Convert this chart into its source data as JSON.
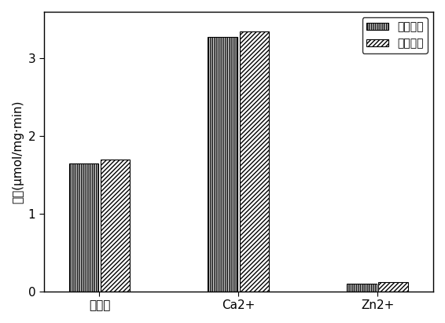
{
  "categories": [
    "控制组",
    "Ca2+",
    "Zn2+"
  ],
  "series": [
    {
      "name": "荧光强度",
      "values": [
        1.65,
        3.28,
        0.1
      ],
      "hatch": "|||||||",
      "facecolor": "#ffffff",
      "edgecolor": "#000000"
    },
    {
      "name": "荧光对命",
      "values": [
        1.7,
        3.35,
        0.12
      ],
      "hatch": "//////",
      "facecolor": "#ffffff",
      "edgecolor": "#000000"
    }
  ],
  "ylabel": "活性(μmol/mg·min)",
  "ylim": [
    0,
    3.6
  ],
  "yticks": [
    0,
    1,
    2,
    3
  ],
  "bar_width": 0.32,
  "group_positions": [
    0.5,
    2.0,
    3.5
  ],
  "legend_loc": "upper right",
  "background_color": "#ffffff",
  "figsize": [
    5.66,
    4.11
  ],
  "dpi": 100,
  "xlabel_fontsize": 11,
  "ylabel_fontsize": 11,
  "tick_fontsize": 11
}
